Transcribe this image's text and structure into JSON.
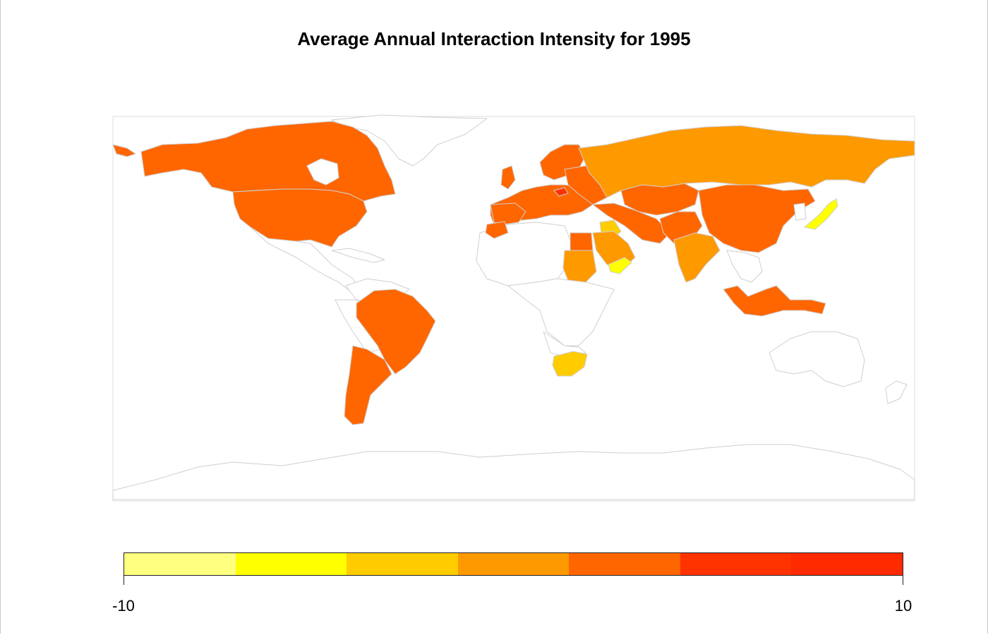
{
  "title": "Average Annual Interaction Intensity for 1995",
  "legend": {
    "min_label": "-10",
    "max_label": "10",
    "colors": [
      "#ffff80",
      "#ffff00",
      "#ffcc00",
      "#ff9900",
      "#ff6600",
      "#ff3300",
      "#ff2a00"
    ]
  },
  "palette": {
    "none": "#ffffff",
    "border": "#cfcfcf",
    "mid_orange": "#ff6600",
    "orange": "#ff9900",
    "amber": "#ffcc00",
    "yellow": "#ffff00",
    "red": "#ff3300"
  }
}
